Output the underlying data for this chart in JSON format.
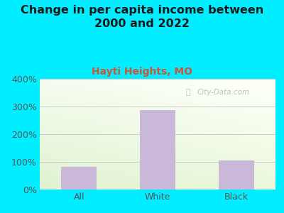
{
  "title": "Change in per capita income between\n2000 and 2022",
  "subtitle": "Hayti Heights, MO",
  "categories": [
    "All",
    "White",
    "Black"
  ],
  "values": [
    82,
    287,
    105
  ],
  "bar_color": "#c9b8d8",
  "title_fontsize": 11.5,
  "subtitle_fontsize": 10,
  "subtitle_color": "#cc5533",
  "title_color": "#1a1a1a",
  "tick_color": "#555555",
  "bg_outer": "#00eeff",
  "bg_plot_top_left": "#d4eac8",
  "bg_plot_top_right": "#eef5e8",
  "bg_plot_bottom": "#f8fbf2",
  "ylim": [
    0,
    400
  ],
  "yticks": [
    0,
    100,
    200,
    300,
    400
  ],
  "ytick_labels": [
    "0%",
    "100%",
    "200%",
    "300%",
    "400%"
  ],
  "grid_color": "#cccccc",
  "watermark": "City-Data.com"
}
